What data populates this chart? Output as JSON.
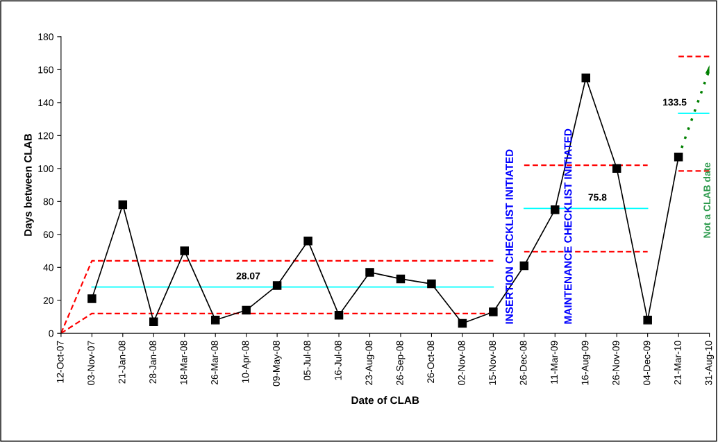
{
  "chart_data": {
    "type": "line",
    "xlabel": "Date of CLAB",
    "ylabel": "Days between CLAB",
    "categories": [
      "12-Oct-07",
      "03-Nov-07",
      "21-Jan-08",
      "28-Jan-08",
      "18-Mar-08",
      "26-Mar-08",
      "10-Apr-08",
      "09-May-08",
      "05-Jul-08",
      "16-Jul-08",
      "23-Aug-08",
      "26-Sep-08",
      "26-Oct-08",
      "02-Nov-08",
      "15-Nov-08",
      "26-Dec-08",
      "11-Mar-09",
      "16-Aug-09",
      "26-Nov-09",
      "04-Dec-09",
      "21-Mar-10",
      "31-Aug-10"
    ],
    "ylim": [
      0,
      180
    ],
    "yticks": [
      0,
      20,
      40,
      60,
      80,
      100,
      120,
      140,
      160,
      180
    ],
    "grid": false,
    "series": [
      {
        "color": "#ff0000",
        "line_style": "dashed",
        "marker": "none",
        "values": [
          0,
          44,
          44,
          44,
          44,
          44,
          44,
          44,
          44,
          44,
          44,
          44,
          44,
          44,
          44,
          null,
          null,
          null,
          null,
          null,
          null,
          null
        ]
      },
      {
        "color": "#ff0000",
        "line_style": "dashed",
        "marker": "none",
        "values": [
          0,
          12,
          12,
          12,
          12,
          12,
          12,
          12,
          12,
          12,
          12,
          12,
          12,
          12,
          12,
          null,
          null,
          null,
          null,
          null,
          null,
          null
        ]
      },
      {
        "color": "#00ffff",
        "line_style": "solid",
        "marker": "none",
        "values": [
          null,
          28.07,
          28.07,
          28.07,
          28.07,
          28.07,
          28.07,
          28.07,
          28.07,
          28.07,
          28.07,
          28.07,
          28.07,
          28.07,
          28.07,
          null,
          null,
          null,
          null,
          null,
          null,
          null
        ]
      },
      {
        "color": "#ff0000",
        "line_style": "dashed",
        "marker": "none",
        "values": [
          null,
          null,
          null,
          null,
          null,
          null,
          null,
          null,
          null,
          null,
          null,
          null,
          null,
          null,
          null,
          102,
          102,
          102,
          102,
          102,
          null,
          null
        ]
      },
      {
        "color": "#ff0000",
        "line_style": "dashed",
        "marker": "none",
        "values": [
          null,
          null,
          null,
          null,
          null,
          null,
          null,
          null,
          null,
          null,
          null,
          null,
          null,
          null,
          null,
          49.5,
          49.5,
          49.5,
          49.5,
          49.5,
          null,
          null
        ]
      },
      {
        "color": "#00ffff",
        "line_style": "solid",
        "marker": "none",
        "values": [
          null,
          null,
          null,
          null,
          null,
          null,
          null,
          null,
          null,
          null,
          null,
          null,
          null,
          null,
          null,
          75.8,
          75.8,
          75.8,
          75.8,
          75.8,
          null,
          null
        ]
      },
      {
        "color": "#ff0000",
        "line_style": "dashed",
        "marker": "none",
        "values": [
          null,
          null,
          null,
          null,
          null,
          null,
          null,
          null,
          null,
          null,
          null,
          null,
          null,
          null,
          null,
          null,
          null,
          null,
          null,
          null,
          168,
          168
        ]
      },
      {
        "color": "#ff0000",
        "line_style": "dashed",
        "marker": "none",
        "values": [
          null,
          null,
          null,
          null,
          null,
          null,
          null,
          null,
          null,
          null,
          null,
          null,
          null,
          null,
          null,
          null,
          null,
          null,
          null,
          null,
          98.5,
          98.5
        ]
      },
      {
        "color": "#00ffff",
        "line_style": "solid",
        "marker": "none",
        "values": [
          null,
          null,
          null,
          null,
          null,
          null,
          null,
          null,
          null,
          null,
          null,
          null,
          null,
          null,
          null,
          null,
          null,
          null,
          null,
          null,
          133.5,
          133.5
        ]
      },
      {
        "color": "#008000",
        "line_style": "dotted",
        "marker": "triangle",
        "values": [
          null,
          null,
          null,
          null,
          null,
          null,
          null,
          null,
          null,
          null,
          null,
          null,
          null,
          null,
          null,
          null,
          null,
          null,
          null,
          null,
          107,
          160
        ]
      },
      {
        "color": "#000000",
        "line_style": "solid",
        "marker": "square",
        "values": [
          null,
          21,
          78,
          7,
          50,
          8,
          14,
          29,
          56,
          11,
          37,
          33,
          30,
          6,
          13,
          41,
          75,
          155,
          100,
          8,
          107,
          null
        ]
      }
    ],
    "annotations": [
      {
        "text": "28.07",
        "x": "09-May-08",
        "y": 28.07
      },
      {
        "text": "75.8",
        "x": "16-Aug-09",
        "y": 75.8
      },
      {
        "text": "133.5",
        "x": "21-Mar-10",
        "y": 133.5
      },
      "INSERTION CHECKLIST INITIATED",
      "MAINTENANCE CHECKLIST INITIATED",
      "Not a CLAB date"
    ]
  }
}
